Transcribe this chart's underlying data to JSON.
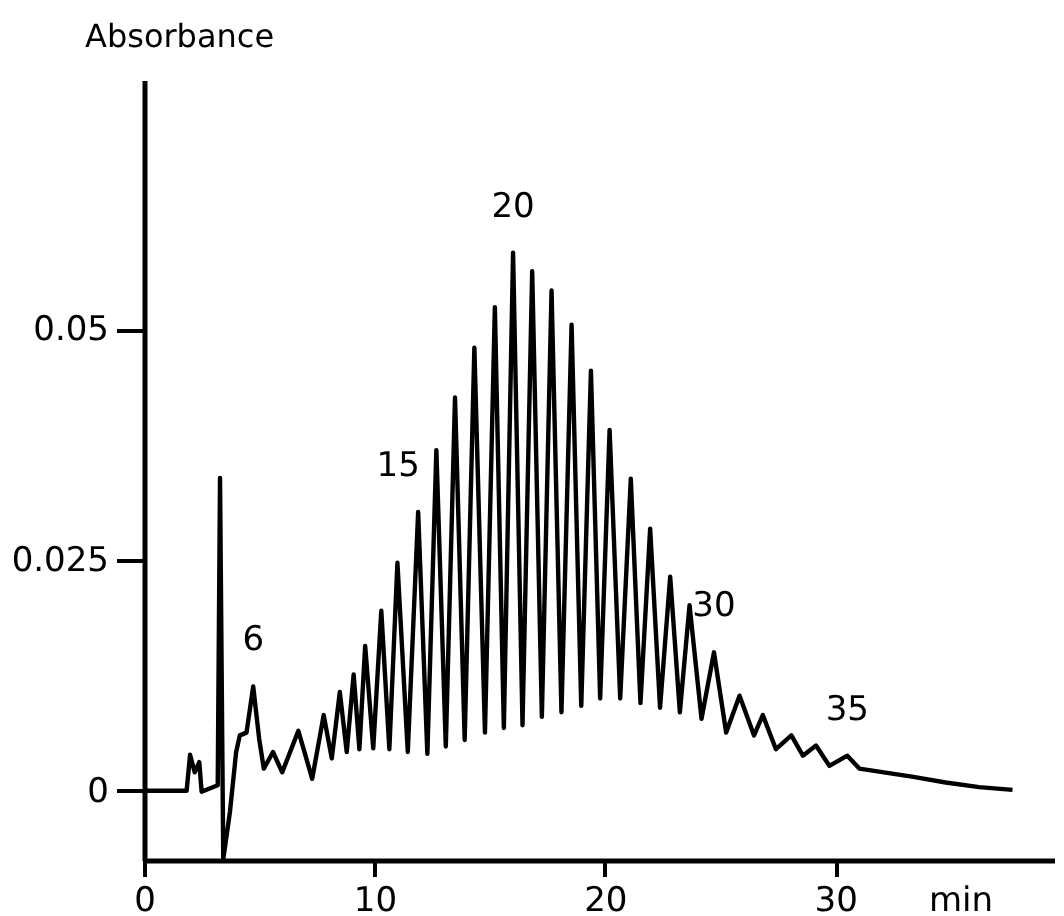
{
  "chart_data": {
    "type": "line",
    "xlabel": "min",
    "ylabel": "Absorbance",
    "xlim": [
      0,
      39.5
    ],
    "ylim": [
      -0.0075,
      0.077
    ],
    "xticks": [
      0,
      10,
      20,
      30
    ],
    "yticks": [
      0,
      0.025,
      0.05
    ],
    "grid": false,
    "marker": "none",
    "line_style": "solid",
    "series": [
      {
        "color": "#000000",
        "x": [
          0,
          1.85,
          2.0,
          2.2,
          2.4,
          2.5,
          3.2,
          3.3,
          3.44,
          3.73,
          4.0,
          4.16,
          4.45,
          4.74,
          5.0,
          5.2,
          5.6,
          6.0,
          6.7,
          7.3,
          7.8,
          8.15,
          8.5,
          8.8,
          9.1,
          9.35,
          9.6,
          9.95,
          10.3,
          10.65,
          11.0,
          11.45,
          11.9,
          12.3,
          12.69,
          13.1,
          13.5,
          13.92,
          14.34,
          14.8,
          15.23,
          15.62,
          16.02,
          16.43,
          16.85,
          17.27,
          17.69,
          18.12,
          18.56,
          18.98,
          19.4,
          19.8,
          20.21,
          20.67,
          21.13,
          21.55,
          21.97,
          22.4,
          22.84,
          23.26,
          23.68,
          24.2,
          24.74,
          25.27,
          25.85,
          26.48,
          26.86,
          27.43,
          28.1,
          28.6,
          29.17,
          29.75,
          30.53,
          31.05,
          33.4,
          34.8,
          36.25,
          37.7
        ],
        "values": [
          0,
          0,
          0.0039,
          0.002,
          0.0031,
          -0.0001,
          0.0006,
          0.0339,
          -0.0074,
          -0.0023,
          0.0042,
          0.006,
          0.0063,
          0.0113,
          0.0056,
          0.0024,
          0.0042,
          0.002,
          0.0065,
          0.0013,
          0.0082,
          0.0035,
          0.0107,
          0.0042,
          0.0126,
          0.0045,
          0.0157,
          0.0046,
          0.0195,
          0.0045,
          0.0247,
          0.0042,
          0.0302,
          0.004,
          0.0369,
          0.0048,
          0.0426,
          0.0055,
          0.048,
          0.0063,
          0.0524,
          0.0068,
          0.0583,
          0.0071,
          0.0563,
          0.008,
          0.0542,
          0.0085,
          0.0505,
          0.0092,
          0.0455,
          0.01,
          0.0391,
          0.01,
          0.0338,
          0.0095,
          0.0284,
          0.009,
          0.0232,
          0.0085,
          0.0201,
          0.0078,
          0.015,
          0.0063,
          0.0103,
          0.006,
          0.0082,
          0.0045,
          0.006,
          0.0038,
          0.0049,
          0.0027,
          0.0038,
          0.0024,
          0.0015,
          0.0009,
          0.0004,
          0.0001
        ]
      }
    ],
    "annotations": [
      {
        "text": "6",
        "x": 4.74,
        "y": 0.0113
      },
      {
        "text": "15",
        "x": 11.9,
        "y": 0.0302
      },
      {
        "text": "20",
        "x": 16.02,
        "y": 0.0583
      },
      {
        "text": "30",
        "x": 24.74,
        "y": 0.015
      },
      {
        "text": "35",
        "x": 30.53,
        "y": 0.0038
      }
    ]
  }
}
